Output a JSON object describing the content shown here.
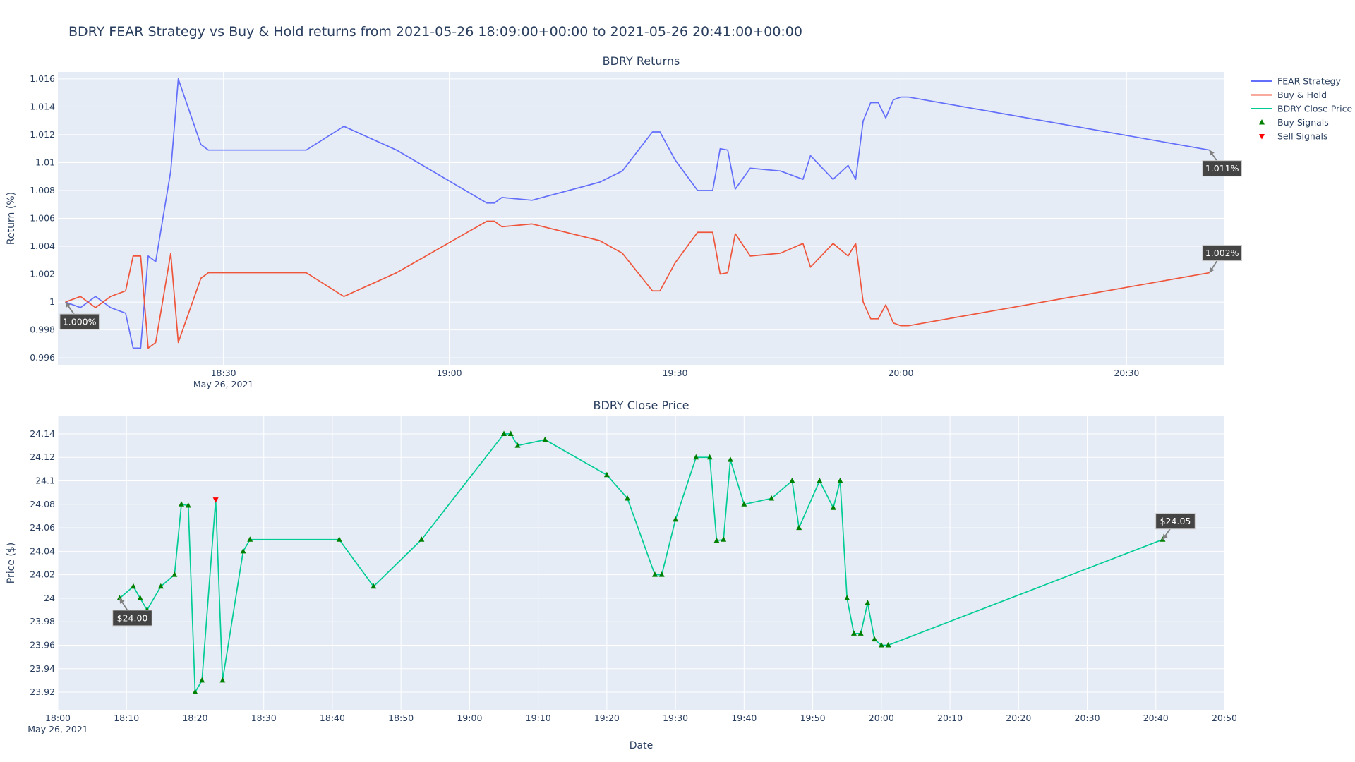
{
  "title": "BDRY FEAR Strategy vs Buy & Hold returns from 2021-05-26 18:09:00+00:00 to 2021-05-26 20:41:00+00:00",
  "colors": {
    "fear": "#636efa",
    "buyhold": "#ef553b",
    "close": "#00cc96",
    "buy_signal": "#008000",
    "sell_signal": "#ff0000",
    "plot_bg": "#e5ecf6",
    "grid": "#ffffff",
    "annotation_bg": "#444444",
    "arrow": "#808080"
  },
  "legend": {
    "items": [
      {
        "label": "FEAR Strategy",
        "kind": "line",
        "color": "#636efa"
      },
      {
        "label": "Buy & Hold",
        "kind": "line",
        "color": "#ef553b"
      },
      {
        "label": "BDRY Close Price",
        "kind": "line",
        "color": "#00cc96"
      },
      {
        "label": "Buy Signals",
        "kind": "triangle-up",
        "color": "#008000"
      },
      {
        "label": "Sell Signals",
        "kind": "triangle-down",
        "color": "#ff0000"
      }
    ]
  },
  "chart_data": [
    {
      "type": "line",
      "title": "BDRY Returns",
      "xlabel": "",
      "ylabel": "Return (%)",
      "xlim": [
        "18:08",
        "20:43"
      ],
      "ylim": [
        0.9955,
        1.0165
      ],
      "grid": true,
      "legend_position": "top-right",
      "x_ticks": [
        {
          "t": "18:30",
          "label": "18:30",
          "sub": "May 26, 2021"
        },
        {
          "t": "19:00",
          "label": "19:00"
        },
        {
          "t": "19:30",
          "label": "19:30"
        },
        {
          "t": "20:00",
          "label": "20:00"
        },
        {
          "t": "20:30",
          "label": "20:30"
        }
      ],
      "y_ticks": [
        {
          "v": 0.996,
          "label": "0.996"
        },
        {
          "v": 0.998,
          "label": "0.998"
        },
        {
          "v": 1.0,
          "label": "1"
        },
        {
          "v": 1.002,
          "label": "1.002"
        },
        {
          "v": 1.004,
          "label": "1.004"
        },
        {
          "v": 1.006,
          "label": "1.006"
        },
        {
          "v": 1.008,
          "label": "1.008"
        },
        {
          "v": 1.01,
          "label": "1.01"
        },
        {
          "v": 1.012,
          "label": "1.012"
        },
        {
          "v": 1.014,
          "label": "1.014"
        },
        {
          "v": 1.016,
          "label": "1.016"
        }
      ],
      "series": [
        {
          "name": "FEAR Strategy",
          "color": "#636efa",
          "points": [
            [
              "18:09",
              1.0
            ],
            [
              "18:11",
              0.9996
            ],
            [
              "18:13",
              1.0004
            ],
            [
              "18:15",
              0.9996
            ],
            [
              "18:17",
              0.9992
            ],
            [
              "18:18",
              0.9967
            ],
            [
              "18:19",
              0.9967
            ],
            [
              "18:20",
              1.0033
            ],
            [
              "18:21",
              1.0029
            ],
            [
              "18:23",
              1.0094
            ],
            [
              "18:24",
              1.016
            ],
            [
              "18:27",
              1.0113
            ],
            [
              "18:28",
              1.0109
            ],
            [
              "18:41",
              1.0109
            ],
            [
              "18:46",
              1.0126
            ],
            [
              "18:53",
              1.0109
            ],
            [
              "19:05",
              1.0071
            ],
            [
              "19:06",
              1.0071
            ],
            [
              "19:07",
              1.0075
            ],
            [
              "19:11",
              1.0073
            ],
            [
              "19:20",
              1.0086
            ],
            [
              "19:23",
              1.0094
            ],
            [
              "19:27",
              1.0122
            ],
            [
              "19:28",
              1.0122
            ],
            [
              "19:30",
              1.0102
            ],
            [
              "19:33",
              1.008
            ],
            [
              "19:35",
              1.008
            ],
            [
              "19:36",
              1.011
            ],
            [
              "19:37",
              1.0109
            ],
            [
              "19:38",
              1.0081
            ],
            [
              "19:40",
              1.0096
            ],
            [
              "19:44",
              1.0094
            ],
            [
              "19:47",
              1.0088
            ],
            [
              "19:48",
              1.0105
            ],
            [
              "19:51",
              1.0088
            ],
            [
              "19:53",
              1.0098
            ],
            [
              "19:54",
              1.0088
            ],
            [
              "19:55",
              1.013
            ],
            [
              "19:56",
              1.0143
            ],
            [
              "19:57",
              1.0143
            ],
            [
              "19:58",
              1.0132
            ],
            [
              "19:59",
              1.0145
            ],
            [
              "20:00",
              1.0147
            ],
            [
              "20:01",
              1.0147
            ],
            [
              "20:41",
              1.0109
            ]
          ]
        },
        {
          "name": "Buy & Hold",
          "color": "#ef553b",
          "points": [
            [
              "18:09",
              1.0
            ],
            [
              "18:11",
              1.0004
            ],
            [
              "18:13",
              0.9996
            ],
            [
              "18:15",
              1.0004
            ],
            [
              "18:17",
              1.0008
            ],
            [
              "18:18",
              1.0033
            ],
            [
              "18:19",
              1.0033
            ],
            [
              "18:20",
              0.9967
            ],
            [
              "18:21",
              0.9971
            ],
            [
              "18:23",
              1.0035
            ],
            [
              "18:24",
              0.9971
            ],
            [
              "18:27",
              1.0017
            ],
            [
              "18:28",
              1.0021
            ],
            [
              "18:41",
              1.0021
            ],
            [
              "18:46",
              1.0004
            ],
            [
              "18:53",
              1.0021
            ],
            [
              "19:05",
              1.0058
            ],
            [
              "19:06",
              1.0058
            ],
            [
              "19:07",
              1.0054
            ],
            [
              "19:11",
              1.0056
            ],
            [
              "19:20",
              1.0044
            ],
            [
              "19:23",
              1.0035
            ],
            [
              "19:27",
              1.0008
            ],
            [
              "19:28",
              1.0008
            ],
            [
              "19:30",
              1.0028
            ],
            [
              "19:33",
              1.005
            ],
            [
              "19:35",
              1.005
            ],
            [
              "19:36",
              1.002
            ],
            [
              "19:37",
              1.0021
            ],
            [
              "19:38",
              1.0049
            ],
            [
              "19:40",
              1.0033
            ],
            [
              "19:44",
              1.0035
            ],
            [
              "19:47",
              1.0042
            ],
            [
              "19:48",
              1.0025
            ],
            [
              "19:51",
              1.0042
            ],
            [
              "19:53",
              1.0033
            ],
            [
              "19:54",
              1.0042
            ],
            [
              "19:55",
              1.0
            ],
            [
              "19:56",
              0.9988
            ],
            [
              "19:57",
              0.9988
            ],
            [
              "19:58",
              0.9998
            ],
            [
              "19:59",
              0.9985
            ],
            [
              "20:00",
              0.9983
            ],
            [
              "20:01",
              0.9983
            ],
            [
              "20:41",
              1.0021
            ]
          ]
        }
      ],
      "annotations": [
        {
          "text": "1.000%",
          "t": "18:09",
          "v": 1.0,
          "dx": 20,
          "dy": 28
        },
        {
          "text": "1.011%",
          "t": "20:41",
          "v": 1.0109,
          "dx": 18,
          "dy": 26
        },
        {
          "text": "1.002%",
          "t": "20:41",
          "v": 1.0021,
          "dx": 18,
          "dy": -28
        }
      ]
    },
    {
      "type": "line",
      "title": "BDRY Close Price",
      "xlabel": "Date",
      "ylabel": "Price ($)",
      "xlim": [
        "18:00",
        "20:50"
      ],
      "ylim": [
        23.905,
        24.155
      ],
      "grid": true,
      "x_ticks": [
        {
          "t": "18:00",
          "label": "18:00",
          "sub": "May 26, 2021"
        },
        {
          "t": "18:10",
          "label": "18:10"
        },
        {
          "t": "18:20",
          "label": "18:20"
        },
        {
          "t": "18:30",
          "label": "18:30"
        },
        {
          "t": "18:40",
          "label": "18:40"
        },
        {
          "t": "18:50",
          "label": "18:50"
        },
        {
          "t": "19:00",
          "label": "19:00"
        },
        {
          "t": "19:10",
          "label": "19:10"
        },
        {
          "t": "19:20",
          "label": "19:20"
        },
        {
          "t": "19:30",
          "label": "19:30"
        },
        {
          "t": "19:40",
          "label": "19:40"
        },
        {
          "t": "19:50",
          "label": "19:50"
        },
        {
          "t": "20:00",
          "label": "20:00"
        },
        {
          "t": "20:10",
          "label": "20:10"
        },
        {
          "t": "20:20",
          "label": "20:20"
        },
        {
          "t": "20:30",
          "label": "20:30"
        },
        {
          "t": "20:40",
          "label": "20:40"
        },
        {
          "t": "20:50",
          "label": "20:50"
        }
      ],
      "y_ticks": [
        {
          "v": 23.92,
          "label": "23.92"
        },
        {
          "v": 23.94,
          "label": "23.94"
        },
        {
          "v": 23.96,
          "label": "23.96"
        },
        {
          "v": 23.98,
          "label": "23.98"
        },
        {
          "v": 24.0,
          "label": "24"
        },
        {
          "v": 24.02,
          "label": "24.02"
        },
        {
          "v": 24.04,
          "label": "24.04"
        },
        {
          "v": 24.06,
          "label": "24.06"
        },
        {
          "v": 24.08,
          "label": "24.08"
        },
        {
          "v": 24.1,
          "label": "24.1"
        },
        {
          "v": 24.12,
          "label": "24.12"
        },
        {
          "v": 24.14,
          "label": "24.14"
        }
      ],
      "series": [
        {
          "name": "BDRY Close Price",
          "color": "#00cc96",
          "points": [
            [
              "18:09",
              24.0
            ],
            [
              "18:11",
              24.01
            ],
            [
              "18:12",
              24.0
            ],
            [
              "18:13",
              23.99
            ],
            [
              "18:15",
              24.01
            ],
            [
              "18:17",
              24.02
            ],
            [
              "18:18",
              24.08
            ],
            [
              "18:19",
              24.079
            ],
            [
              "18:20",
              23.92
            ],
            [
              "18:21",
              23.93
            ],
            [
              "18:23",
              24.084
            ],
            [
              "18:24",
              23.93
            ],
            [
              "18:27",
              24.04
            ],
            [
              "18:28",
              24.05
            ],
            [
              "18:41",
              24.05
            ],
            [
              "18:46",
              24.01
            ],
            [
              "18:53",
              24.05
            ],
            [
              "19:05",
              24.14
            ],
            [
              "19:06",
              24.14
            ],
            [
              "19:07",
              24.13
            ],
            [
              "19:11",
              24.135
            ],
            [
              "19:20",
              24.105
            ],
            [
              "19:23",
              24.085
            ],
            [
              "19:27",
              24.02
            ],
            [
              "19:28",
              24.02
            ],
            [
              "19:30",
              24.067
            ],
            [
              "19:33",
              24.12
            ],
            [
              "19:35",
              24.12
            ],
            [
              "19:36",
              24.049
            ],
            [
              "19:37",
              24.05
            ],
            [
              "19:38",
              24.118
            ],
            [
              "19:40",
              24.08
            ],
            [
              "19:44",
              24.085
            ],
            [
              "19:47",
              24.1
            ],
            [
              "19:48",
              24.06
            ],
            [
              "19:51",
              24.1
            ],
            [
              "19:53",
              24.077
            ],
            [
              "19:54",
              24.1
            ],
            [
              "19:55",
              24.0
            ],
            [
              "19:56",
              23.97
            ],
            [
              "19:57",
              23.97
            ],
            [
              "19:58",
              23.996
            ],
            [
              "19:59",
              23.965
            ],
            [
              "20:00",
              23.96
            ],
            [
              "20:01",
              23.96
            ],
            [
              "20:41",
              24.05
            ]
          ]
        },
        {
          "name": "Buy Signals",
          "color": "#008000",
          "marker": "triangle-up",
          "points": [
            [
              "18:09",
              24.0
            ],
            [
              "18:11",
              24.01
            ],
            [
              "18:12",
              24.0
            ],
            [
              "18:13",
              23.99
            ],
            [
              "18:15",
              24.01
            ],
            [
              "18:17",
              24.02
            ],
            [
              "18:18",
              24.08
            ],
            [
              "18:19",
              24.079
            ],
            [
              "18:20",
              23.92
            ],
            [
              "18:21",
              23.93
            ],
            [
              "18:24",
              23.93
            ],
            [
              "18:27",
              24.04
            ],
            [
              "18:28",
              24.05
            ],
            [
              "18:41",
              24.05
            ],
            [
              "18:46",
              24.01
            ],
            [
              "18:53",
              24.05
            ],
            [
              "19:05",
              24.14
            ],
            [
              "19:06",
              24.14
            ],
            [
              "19:07",
              24.13
            ],
            [
              "19:11",
              24.135
            ],
            [
              "19:20",
              24.105
            ],
            [
              "19:23",
              24.085
            ],
            [
              "19:27",
              24.02
            ],
            [
              "19:28",
              24.02
            ],
            [
              "19:30",
              24.067
            ],
            [
              "19:33",
              24.12
            ],
            [
              "19:35",
              24.12
            ],
            [
              "19:36",
              24.049
            ],
            [
              "19:37",
              24.05
            ],
            [
              "19:38",
              24.118
            ],
            [
              "19:40",
              24.08
            ],
            [
              "19:44",
              24.085
            ],
            [
              "19:47",
              24.1
            ],
            [
              "19:48",
              24.06
            ],
            [
              "19:51",
              24.1
            ],
            [
              "19:53",
              24.077
            ],
            [
              "19:54",
              24.1
            ],
            [
              "19:55",
              24.0
            ],
            [
              "19:56",
              23.97
            ],
            [
              "19:57",
              23.97
            ],
            [
              "19:58",
              23.996
            ],
            [
              "19:59",
              23.965
            ],
            [
              "20:00",
              23.96
            ],
            [
              "20:01",
              23.96
            ],
            [
              "20:41",
              24.05
            ]
          ]
        },
        {
          "name": "Sell Signals",
          "color": "#ff0000",
          "marker": "triangle-down",
          "points": [
            [
              "18:23",
              24.084
            ]
          ]
        }
      ],
      "annotations": [
        {
          "text": "$24.00",
          "t": "18:09",
          "v": 24.0,
          "dx": 18,
          "dy": 28
        },
        {
          "text": "$24.05",
          "t": "20:41",
          "v": 24.05,
          "dx": 18,
          "dy": -26
        }
      ]
    }
  ]
}
